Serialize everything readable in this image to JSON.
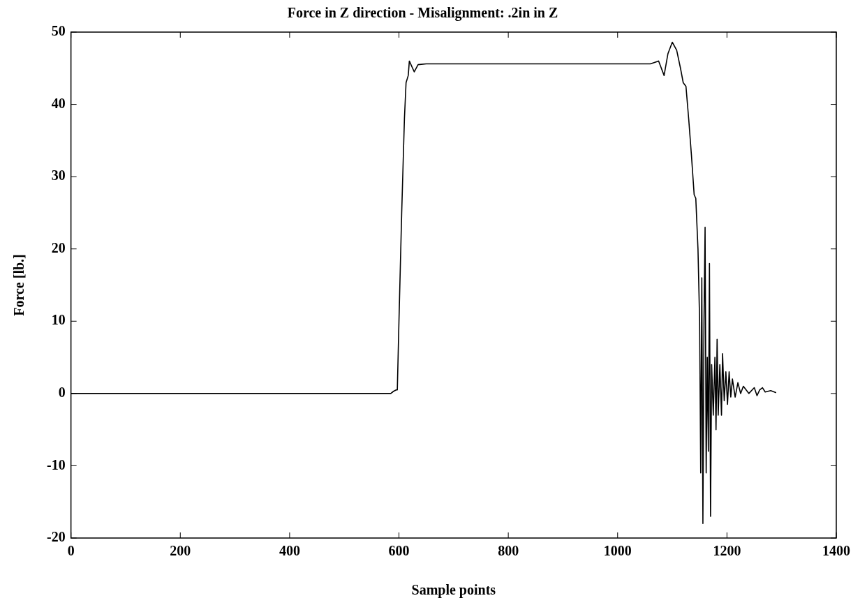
{
  "chart_data": {
    "type": "line",
    "title": "Force in Z direction - Misalignment: .2in in Z",
    "xlabel": "Sample points",
    "ylabel": "Force [lb.]",
    "xlim": [
      0,
      1400
    ],
    "xticks": [
      0,
      200,
      400,
      600,
      800,
      1000,
      1200,
      1400
    ],
    "ylim": [
      -20,
      50
    ],
    "yticks": [
      -20,
      -10,
      0,
      10,
      20,
      30,
      40,
      50
    ],
    "grid": false,
    "legend": false,
    "marker": "none",
    "line_style": "solid",
    "series": [
      {
        "color": "#000000",
        "x": [
          0,
          585,
          590,
          595,
          597,
          600,
          605,
          610,
          613,
          617,
          619,
          622,
          628,
          635,
          650,
          1060,
          1075,
          1085,
          1092,
          1100,
          1108,
          1115,
          1120,
          1125,
          1130,
          1135,
          1140,
          1143,
          1147,
          1150,
          1152,
          1154,
          1156,
          1158,
          1160,
          1162,
          1164,
          1166,
          1168,
          1170,
          1172,
          1175,
          1178,
          1180,
          1182,
          1184,
          1187,
          1190,
          1192,
          1195,
          1198,
          1201,
          1204,
          1207,
          1210,
          1215,
          1220,
          1225,
          1230,
          1240,
          1250,
          1255,
          1260,
          1265,
          1270,
          1280,
          1290
        ],
        "values": [
          0,
          0,
          0.3,
          0.5,
          0.5,
          10,
          25,
          38,
          43,
          44,
          46,
          45.5,
          44.5,
          45.5,
          45.6,
          45.6,
          46,
          44,
          47,
          48.6,
          47.5,
          45,
          43,
          42.5,
          38,
          33,
          27.5,
          27,
          20,
          10,
          -11,
          16,
          -18,
          10,
          23,
          -11,
          5,
          -8,
          18,
          -17,
          4,
          -3,
          5,
          -5,
          7.5,
          -3,
          4,
          -3,
          5.5,
          -1,
          3,
          -1.5,
          3,
          -0.5,
          2,
          -0.5,
          1.5,
          0,
          1,
          0,
          0.8,
          -0.3,
          0.5,
          0.8,
          0.2,
          0.4,
          0.1
        ]
      }
    ]
  }
}
